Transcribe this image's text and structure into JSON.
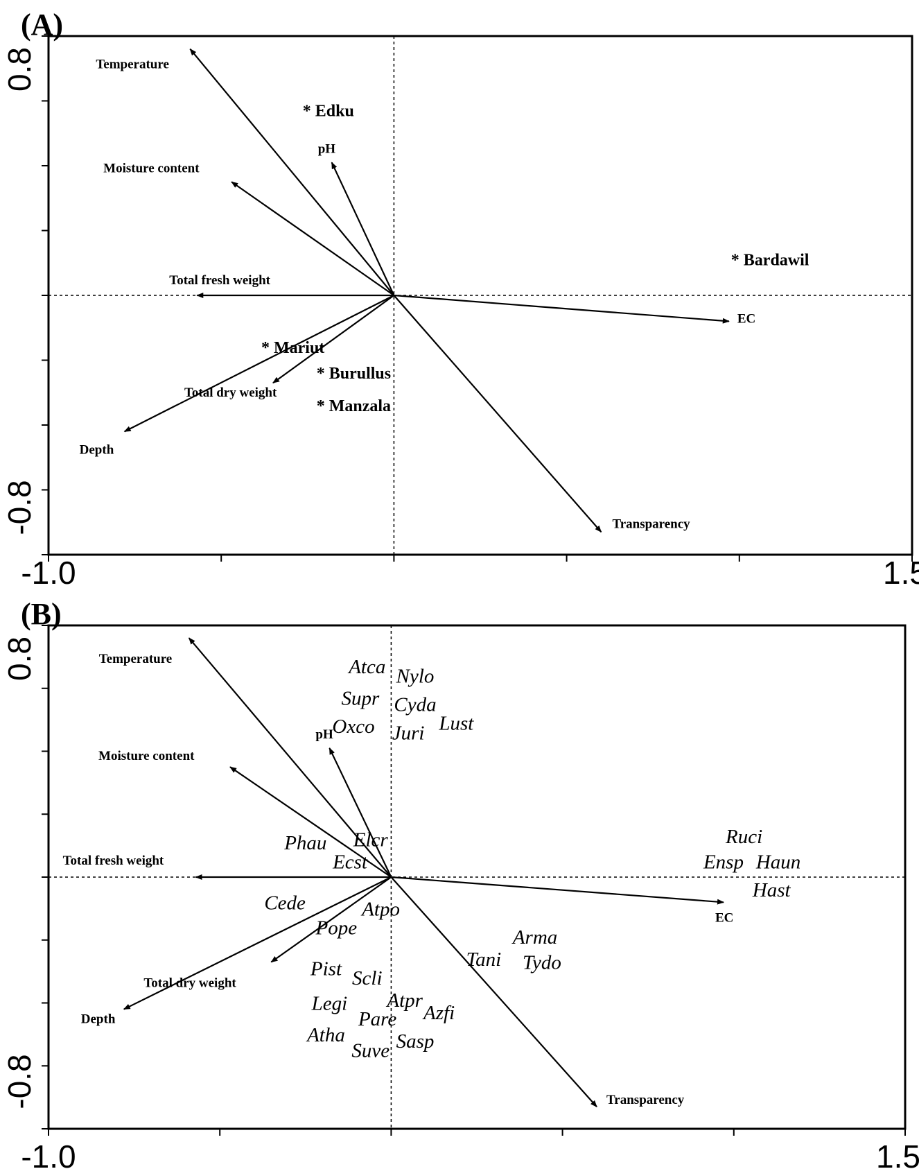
{
  "chart_data": [
    {
      "type": "scatter",
      "panel_label": "(A)",
      "xlim": [
        -1.0,
        1.5
      ],
      "ylim": [
        -0.8,
        0.8
      ],
      "x_tick_labels": [
        "-1.0",
        "1.5"
      ],
      "y_tick_labels": [
        "0.8",
        "-0.8"
      ],
      "grid": false,
      "zero_lines": true,
      "vectors": [
        {
          "label": "Temperature",
          "x": -0.59,
          "y": 0.76
        },
        {
          "label": "Moisture content",
          "x": -0.47,
          "y": 0.35
        },
        {
          "label": "pH",
          "x": -0.18,
          "y": 0.41
        },
        {
          "label": "Total fresh weight",
          "x": -0.57,
          "y": 0.0
        },
        {
          "label": "EC",
          "x": 0.97,
          "y": -0.08
        },
        {
          "label": "Total dry weight",
          "x": -0.35,
          "y": -0.27
        },
        {
          "label": "Depth",
          "x": -0.78,
          "y": -0.42
        },
        {
          "label": "Transparency",
          "x": 0.6,
          "y": -0.73
        }
      ],
      "points": [
        {
          "label": "Edku",
          "x": -0.24,
          "y": 0.57
        },
        {
          "label": "Bardawil",
          "x": 1.0,
          "y": 0.11
        },
        {
          "label": "Mariut",
          "x": -0.36,
          "y": -0.16
        },
        {
          "label": "Burullus",
          "x": -0.2,
          "y": -0.24
        },
        {
          "label": "Manzala",
          "x": -0.2,
          "y": -0.34
        }
      ]
    },
    {
      "type": "scatter",
      "panel_label": "(B)",
      "xlim": [
        -1.0,
        1.5
      ],
      "ylim": [
        -0.8,
        0.8
      ],
      "x_tick_labels": [
        "-1.0",
        "1.5"
      ],
      "y_tick_labels": [
        "0.8",
        "-0.8"
      ],
      "grid": false,
      "zero_lines": true,
      "vectors": [
        {
          "label": "Temperature",
          "x": -0.59,
          "y": 0.76
        },
        {
          "label": "Moisture content",
          "x": -0.47,
          "y": 0.35
        },
        {
          "label": "pH",
          "x": -0.18,
          "y": 0.41
        },
        {
          "label": "Total fresh weight",
          "x": -0.57,
          "y": 0.0
        },
        {
          "label": "EC",
          "x": 0.97,
          "y": -0.08
        },
        {
          "label": "Total dry weight",
          "x": -0.35,
          "y": -0.27
        },
        {
          "label": "Depth",
          "x": -0.78,
          "y": -0.42
        },
        {
          "label": "Transparency",
          "x": 0.6,
          "y": -0.73
        }
      ],
      "species": [
        {
          "label": "Atca",
          "x": -0.07,
          "y": 0.67
        },
        {
          "label": "Nylo",
          "x": 0.07,
          "y": 0.64
        },
        {
          "label": "Supr",
          "x": -0.09,
          "y": 0.57
        },
        {
          "label": "Cyda",
          "x": 0.07,
          "y": 0.55
        },
        {
          "label": "Oxco",
          "x": -0.11,
          "y": 0.48
        },
        {
          "label": "Juri",
          "x": 0.05,
          "y": 0.46
        },
        {
          "label": "Lust",
          "x": 0.19,
          "y": 0.49
        },
        {
          "label": "Phau",
          "x": -0.25,
          "y": 0.11
        },
        {
          "label": "Elcr",
          "x": -0.06,
          "y": 0.12
        },
        {
          "label": "Ecst",
          "x": -0.12,
          "y": 0.05
        },
        {
          "label": "Ruci",
          "x": 1.03,
          "y": 0.13
        },
        {
          "label": "Ensp",
          "x": 0.97,
          "y": 0.05
        },
        {
          "label": "Haun",
          "x": 1.13,
          "y": 0.05
        },
        {
          "label": "Hast",
          "x": 1.11,
          "y": -0.04
        },
        {
          "label": "Cede",
          "x": -0.31,
          "y": -0.08
        },
        {
          "label": "Atpo",
          "x": -0.03,
          "y": -0.1
        },
        {
          "label": "Pope",
          "x": -0.16,
          "y": -0.16
        },
        {
          "label": "Arma",
          "x": 0.42,
          "y": -0.19
        },
        {
          "label": "Tani",
          "x": 0.27,
          "y": -0.26
        },
        {
          "label": "Tydo",
          "x": 0.44,
          "y": -0.27
        },
        {
          "label": "Pist",
          "x": -0.19,
          "y": -0.29
        },
        {
          "label": "Scli",
          "x": -0.07,
          "y": -0.32
        },
        {
          "label": "Atpr",
          "x": 0.04,
          "y": -0.39
        },
        {
          "label": "Legi",
          "x": -0.18,
          "y": -0.4
        },
        {
          "label": "Azfi",
          "x": 0.14,
          "y": -0.43
        },
        {
          "label": "Pare",
          "x": -0.04,
          "y": -0.45
        },
        {
          "label": "Atha",
          "x": -0.19,
          "y": -0.5
        },
        {
          "label": "Sasp",
          "x": 0.07,
          "y": -0.52
        },
        {
          "label": "Suve",
          "x": -0.06,
          "y": -0.55
        }
      ]
    }
  ]
}
